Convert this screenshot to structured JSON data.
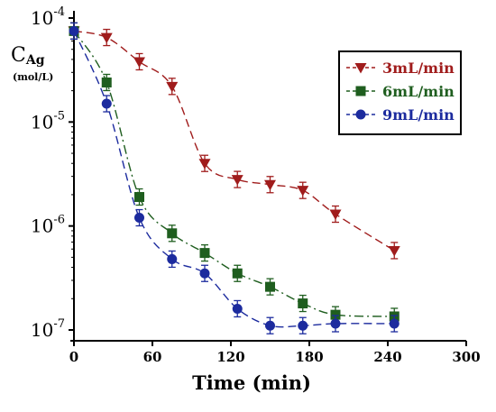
{
  "chart_data": {
    "type": "scatter",
    "title": "",
    "xlabel": "Time (min)",
    "ylabel": "C",
    "ylabel_sub": "Ag",
    "ylabel_unit": "(mol/L)",
    "xlim": [
      0,
      300
    ],
    "ylim": [
      1e-07,
      0.0001
    ],
    "yscale": "log",
    "grid": false,
    "legend_position": "top-right",
    "x_ticks": [
      "0",
      "60",
      "120",
      "180",
      "240",
      "300"
    ],
    "y_ticks": [
      {
        "base": "10",
        "exp": "-4",
        "value": 0.0001
      },
      {
        "base": "10",
        "exp": "-5",
        "value": 1e-05
      },
      {
        "base": "10",
        "exp": "-6",
        "value": 1e-06
      },
      {
        "base": "10",
        "exp": "-7",
        "value": 1e-07
      }
    ],
    "series": [
      {
        "name": "3mL/min",
        "color": "#a01c1c",
        "marker": "triangle-down",
        "line": "dashed",
        "x": [
          0,
          25,
          50,
          75,
          100,
          125,
          150,
          175,
          200,
          245
        ],
        "y": [
          7.5e-05,
          6.5e-05,
          3.8e-05,
          2.2e-05,
          4e-06,
          2.8e-06,
          2.5e-06,
          2.2e-06,
          1.3e-06,
          5.8e-07
        ]
      },
      {
        "name": "6mL/min",
        "color": "#1f5e1f",
        "marker": "square",
        "line": "dash-dot",
        "x": [
          0,
          25,
          50,
          75,
          100,
          125,
          150,
          175,
          200,
          245
        ],
        "y": [
          7.5e-05,
          2.4e-05,
          1.9e-06,
          8.5e-07,
          5.5e-07,
          3.5e-07,
          2.6e-07,
          1.8e-07,
          1.4e-07,
          1.35e-07
        ]
      },
      {
        "name": "9mL/min",
        "color": "#1c2b9e",
        "marker": "circle",
        "line": "dashed",
        "x": [
          0,
          25,
          50,
          75,
          100,
          125,
          150,
          175,
          200,
          245
        ],
        "y": [
          7.5e-05,
          1.5e-05,
          1.2e-06,
          4.8e-07,
          3.5e-07,
          1.6e-07,
          1.1e-07,
          1.1e-07,
          1.15e-07,
          1.15e-07
        ]
      }
    ]
  }
}
